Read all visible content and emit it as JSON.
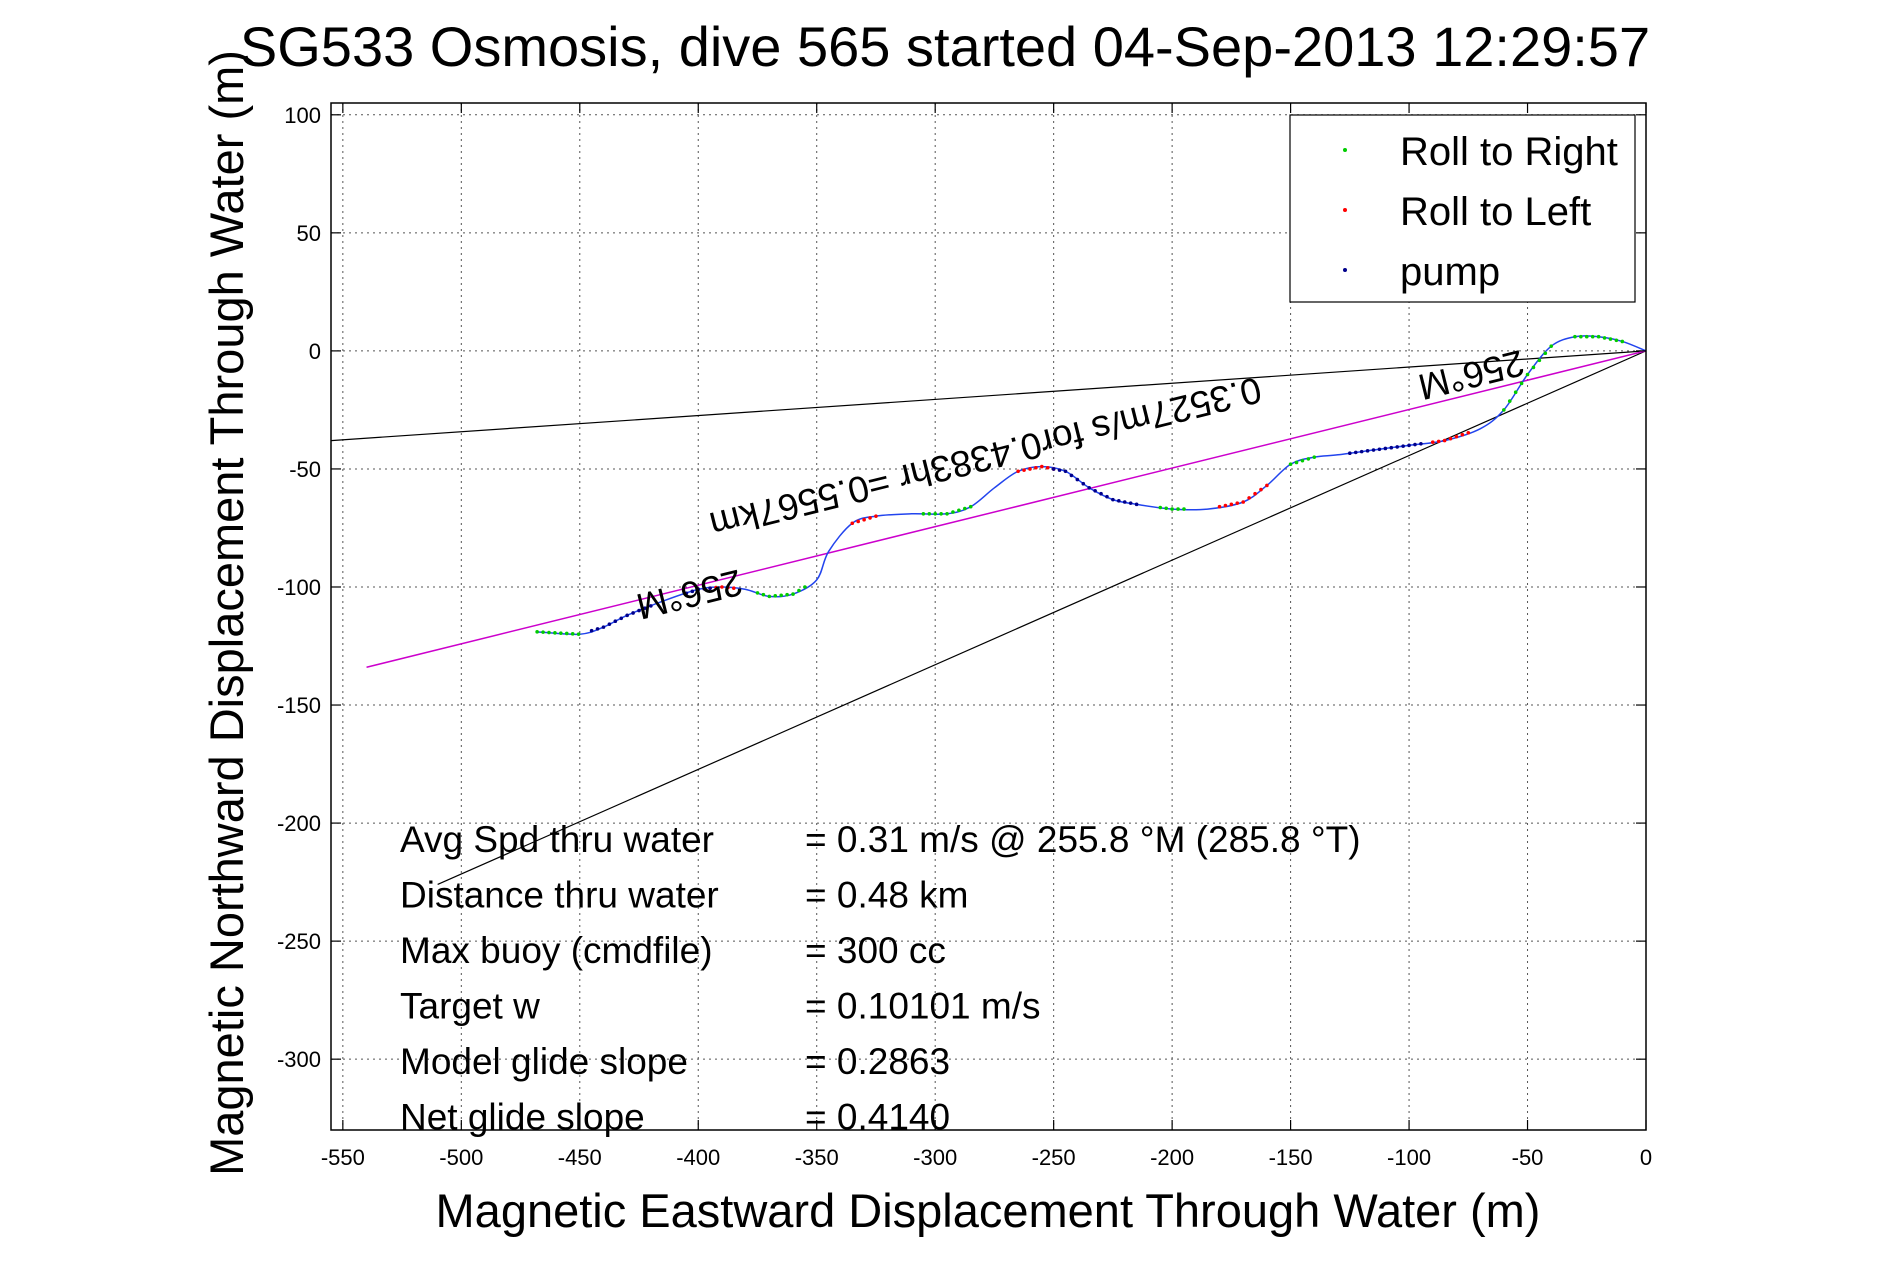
{
  "chart_data": {
    "type": "line",
    "title": "SG533 Osmosis, dive 565 started 04-Sep-2013 12:29:57",
    "xlabel": "Magnetic Eastward Displacement Through Water (m)",
    "ylabel": "Magnetic Northward Displacement Through Water (m)",
    "xlim": [
      -555,
      0
    ],
    "ylim": [
      -330,
      105
    ],
    "grid": true,
    "x_ticks": [
      -550,
      -500,
      -450,
      -400,
      -350,
      -300,
      -250,
      -200,
      -150,
      -100,
      -50,
      0
    ],
    "x_tick_labels": [
      "-550",
      "-500",
      "-450",
      "-400",
      "-350",
      "-300",
      "-250",
      "-200",
      "-150",
      "-100",
      "-50",
      "0"
    ],
    "y_ticks": [
      100,
      50,
      0,
      -50,
      -100,
      -150,
      -200,
      -250,
      -300
    ],
    "y_tick_labels": [
      "100",
      "50",
      "0",
      "-50",
      "-100",
      "-150",
      "-200",
      "-250",
      "-300"
    ],
    "legend": {
      "placement": "top-right",
      "entries": [
        {
          "label": "Roll to Right",
          "color": "#00cc00"
        },
        {
          "label": "Roll to Left",
          "color": "#ff0000"
        },
        {
          "label": "pump",
          "color": "#00008b"
        }
      ]
    },
    "colors": {
      "track": "#2244ee",
      "net_line": "#cc00cc",
      "reference_lines": "#000000"
    },
    "track": {
      "x": [
        -468,
        -450,
        -440,
        -430,
        -415,
        -400,
        -390,
        -380,
        -370,
        -360,
        -350,
        -345,
        -335,
        -325,
        -310,
        -295,
        -285,
        -275,
        -265,
        -255,
        -245,
        -235,
        -225,
        -215,
        -200,
        -185,
        -170,
        -160,
        -150,
        -140,
        -130,
        -115,
        -100,
        -85,
        -70,
        -60,
        -50,
        -40,
        -30,
        -20,
        -10,
        0
      ],
      "y": [
        -119,
        -120,
        -117,
        -112,
        -106,
        -101,
        -100,
        -101,
        -104,
        -103,
        -97,
        -85,
        -73,
        -70,
        -69,
        -69,
        -66,
        -58,
        -51,
        -49,
        -51,
        -58,
        -63,
        -65,
        -67,
        -67,
        -64,
        -57,
        -48,
        -45,
        -44,
        -42,
        -40,
        -38,
        -33,
        -25,
        -10,
        2,
        6,
        6,
        4,
        0
      ]
    },
    "roll_right_segments": [
      [
        -468,
        -450
      ],
      [
        -375,
        -355
      ],
      [
        -305,
        -285
      ],
      [
        -205,
        -195
      ],
      [
        -150,
        -140
      ],
      [
        -60,
        -40
      ],
      [
        -30,
        -10
      ]
    ],
    "roll_left_segments": [
      [
        -400,
        -385
      ],
      [
        -335,
        -325
      ],
      [
        -265,
        -250
      ],
      [
        -180,
        -160
      ],
      [
        -90,
        -75
      ]
    ],
    "pump_segments": [
      [
        -445,
        -420
      ],
      [
        -405,
        -395
      ],
      [
        -250,
        -215
      ],
      [
        -125,
        -95
      ]
    ],
    "reference_lines": [
      {
        "x": [
          0,
          -555
        ],
        "y": [
          0,
          -38
        ]
      },
      {
        "x": [
          0,
          -510
        ],
        "y": [
          0,
          -226
        ]
      }
    ],
    "net_line": {
      "x": [
        0,
        -540
      ],
      "y": [
        0,
        -134
      ]
    },
    "annotations": [
      {
        "text": "0.3527m/s for0.4383hr =0.5567km",
        "x": -280,
        "y": -40,
        "rotation": 166
      },
      {
        "text": "256°M",
        "x": -405,
        "y": -98,
        "rotation": 166
      },
      {
        "text": "256°M",
        "x": -75,
        "y": -5,
        "rotation": 166
      }
    ],
    "stats": [
      {
        "label": "Avg Spd thru water",
        "value": "=  0.31 m/s @ 255.8 °M (285.8 °T)"
      },
      {
        "label": "Distance thru water",
        "value": "=  0.48 km"
      },
      {
        "label": "Max buoy (cmdfile)",
        "value": "= 300 cc"
      },
      {
        "label": "Target w",
        "value": "= 0.10101 m/s"
      },
      {
        "label": "Model glide slope",
        "value": "= 0.2863"
      },
      {
        "label": "Net glide slope",
        "value": "= 0.4140"
      }
    ]
  }
}
